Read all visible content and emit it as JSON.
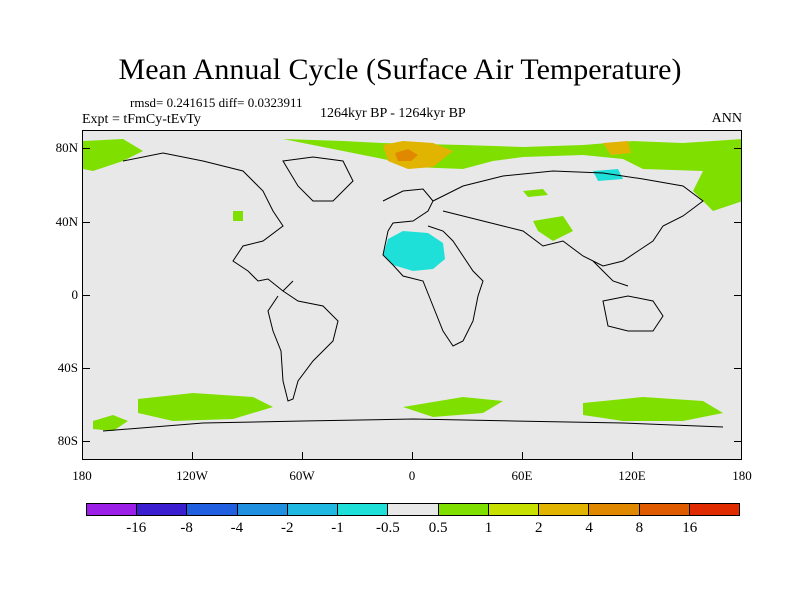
{
  "title": "Mean Annual Cycle (Surface Air Temperature)",
  "stats": "rmsd= 0.241615 diff= 0.0323911",
  "experiment": "Expt = tFmCy-tEvTy",
  "period": "1264kyr BP - 1264kyr BP",
  "season": "ANN",
  "y_axis_labels": [
    "80N",
    "40N",
    "0",
    "40S",
    "80S"
  ],
  "x_axis_labels": [
    "180",
    "120W",
    "60W",
    "0",
    "60E",
    "120E",
    "180"
  ],
  "colorbar": {
    "colors": [
      "#9b1fe6",
      "#3a1ed0",
      "#1f5fe0",
      "#1f8fe0",
      "#1fb8e0",
      "#1fe0d8",
      "#e8e8e8",
      "#7fe000",
      "#c8e000",
      "#e0b400",
      "#e08800",
      "#e05a00",
      "#e02a00"
    ],
    "labels": [
      "-16",
      "-8",
      "-4",
      "-2",
      "-1",
      "-0.5",
      "0.5",
      "1",
      "2",
      "4",
      "8",
      "16"
    ]
  },
  "regions": [
    {
      "name": "arctic-warming-band",
      "color": "#7fe000"
    },
    {
      "name": "north-atlantic-warm",
      "color": "#e0b400"
    },
    {
      "name": "sahara-cooling",
      "color": "#1fe0d8"
    },
    {
      "name": "antarctic-warming",
      "color": "#7fe000"
    }
  ]
}
